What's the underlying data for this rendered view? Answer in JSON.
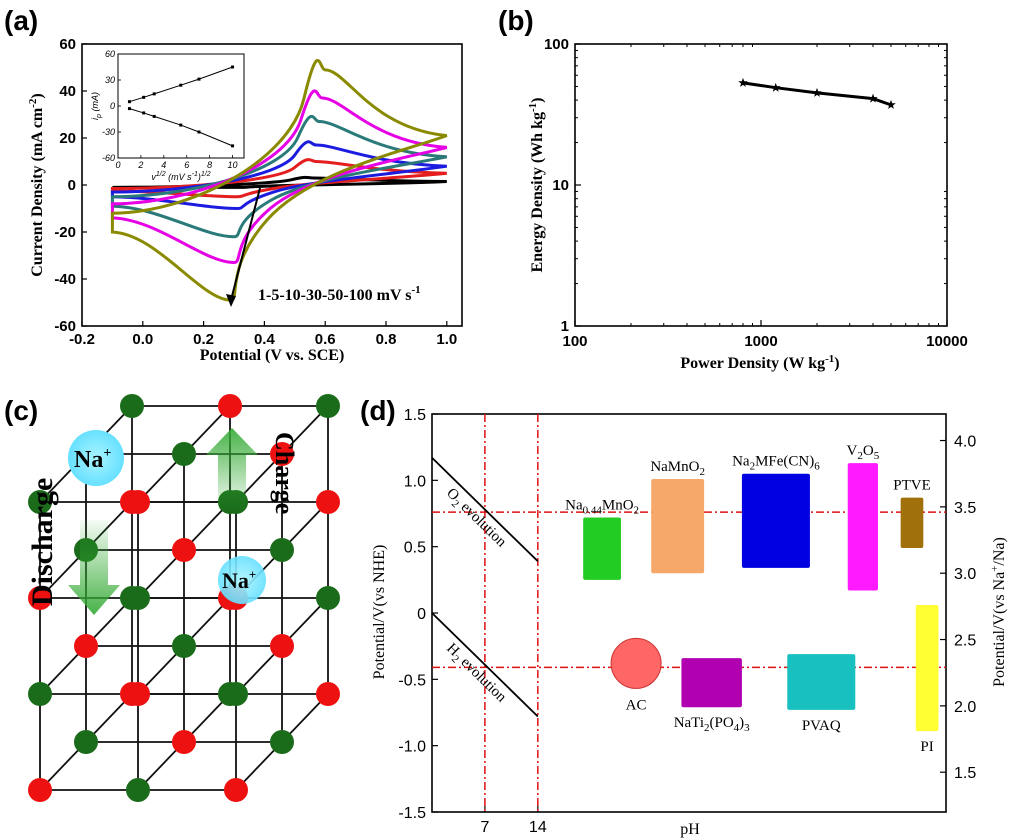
{
  "chart_data": [
    {
      "panel_label": "(a)",
      "type": "line",
      "xlabel": "Potential (V vs. SCE)",
      "ylabel": "Current Density (mA cm",
      "ylabel_sup": "-2",
      "ylabel_close": ")",
      "xlim": [
        -0.2,
        1.05
      ],
      "ylim": [
        -60,
        60
      ],
      "xticks": [
        "-0.2",
        "0.0",
        "0.2",
        "0.4",
        "0.6",
        "0.8",
        "1.0"
      ],
      "yticks": [
        "-60",
        "-40",
        "-20",
        "0",
        "20",
        "40",
        "60"
      ],
      "annotation": "1-5-10-30-50-100 mV s",
      "annotation_sup": "-1",
      "series": [
        {
          "scan_rate": 1,
          "color": "#000000",
          "peak_anodic": [
            0.56,
            3
          ],
          "peak_cathodic": [
            0.32,
            -1
          ],
          "end_upper": 1.5,
          "end_lower": 0.5,
          "start": [
            -0.1,
            -1.0
          ],
          "start_upper": -1.0
        },
        {
          "scan_rate": 5,
          "color": "#e41e1e",
          "peak_anodic": [
            0.57,
            10
          ],
          "peak_cathodic": [
            0.31,
            -5
          ],
          "end_upper": 5,
          "end_lower": 3,
          "start": [
            -0.1,
            -2.5
          ],
          "start_upper": -1.5
        },
        {
          "scan_rate": 10,
          "color": "#1c1ce0",
          "peak_anodic": [
            0.57,
            17
          ],
          "peak_cathodic": [
            0.31,
            -10
          ],
          "end_upper": 8,
          "end_lower": 5,
          "start": [
            -0.1,
            -5
          ],
          "start_upper": -3
        },
        {
          "scan_rate": 30,
          "color": "#2a7a7a",
          "peak_anodic": [
            0.58,
            27
          ],
          "peak_cathodic": [
            0.3,
            -22
          ],
          "end_upper": 12,
          "end_lower": 8,
          "start": [
            -0.1,
            -9
          ],
          "start_upper": -5
        },
        {
          "scan_rate": 50,
          "color": "#e600e6",
          "peak_anodic": [
            0.59,
            37
          ],
          "peak_cathodic": [
            0.3,
            -33
          ],
          "end_upper": 16,
          "end_lower": 11,
          "start": [
            -0.1,
            -14
          ],
          "start_upper": -8
        },
        {
          "scan_rate": 100,
          "color": "#8a8a00",
          "peak_anodic": [
            0.6,
            49
          ],
          "peak_cathodic": [
            0.29,
            -49
          ],
          "end_upper": 21,
          "end_lower": 14,
          "start": [
            -0.1,
            -20
          ],
          "start_upper": -12
        }
      ],
      "inset": {
        "xlabel": "v",
        "xlabel_sup": "1/2",
        "xlabel_rest": " (mV s",
        "xlabel_sup2": "-1",
        "xlabel_close": ")",
        "xlabel_sup3": "1/2",
        "ylabel": "i",
        "ylabel_sub": "p",
        "ylabel_rest": " (mA)",
        "xlim": [
          0,
          11
        ],
        "ylim": [
          -60,
          60
        ],
        "xticks": [
          "0",
          "2",
          "4",
          "6",
          "8",
          "10"
        ],
        "yticks": [
          "-60",
          "-30",
          "0",
          "30",
          "60"
        ],
        "x": [
          1,
          2.24,
          3.16,
          5.48,
          7.07,
          10
        ],
        "anodic": [
          5,
          10,
          14,
          24,
          31,
          45
        ],
        "cathodic": [
          -3,
          -8,
          -12,
          -22,
          -30,
          -46
        ]
      }
    },
    {
      "panel_label": "(b)",
      "type": "line",
      "xlabel": "Power Density (W kg",
      "xlabel_sup": "-1",
      "xlabel_close": ")",
      "ylabel": "Energy Density (Wh kg",
      "ylabel_sup": "-1",
      "ylabel_close": ")",
      "xscale": "log",
      "yscale": "log",
      "xlim": [
        100,
        10000
      ],
      "ylim": [
        1,
        100
      ],
      "xticks": [
        "100",
        "1000",
        "10000"
      ],
      "yticks": [
        "1",
        "10",
        "100"
      ],
      "x": [
        800,
        1200,
        2000,
        4000,
        5000
      ],
      "y": [
        53,
        49,
        45,
        41,
        37
      ],
      "marker": "star"
    },
    {
      "panel_label": "(d)",
      "type": "scatter",
      "xlabel": "pH",
      "ylabel_left": "Potential/V(vs NHE)",
      "ylabel_right": "Potential/V(vs Na",
      "ylabel_right_sup": "+",
      "ylabel_right_close": "/Na)",
      "ylim_left": [
        -1.5,
        1.5
      ],
      "yticks_left": [
        "1.5",
        "1.0",
        "0.5",
        "0",
        "-0.5",
        "-1.0",
        "-1.5"
      ],
      "yticks_right": [
        "4.0",
        "3.5",
        "3.0",
        "2.5",
        "2.0",
        "1.5"
      ],
      "right_offset": 2.7,
      "xticks": [
        "7",
        "14"
      ],
      "xlim": [
        0,
        68
      ],
      "o2_label": "O",
      "o2_sub": "2",
      "o2_rest": " evolution",
      "h2_label": "H",
      "h2_sub": "2",
      "h2_rest": " evolution",
      "o2_line": [
        1.17,
        0.39
      ],
      "h2_line": [
        0.0,
        -0.78
      ],
      "ref_levels": [
        0.76,
        -0.41
      ],
      "materials": [
        {
          "name": "Na",
          "sub": "0.44",
          "rest": "MnO",
          "sub2": "2",
          "color": "#22cc22",
          "x": [
            20,
            25
          ],
          "y": [
            0.25,
            0.72
          ]
        },
        {
          "name": "NaMnO",
          "sub": "2",
          "rest": "",
          "sub2": "",
          "color": "#f5a86a",
          "x": [
            29,
            36
          ],
          "y": [
            0.3,
            1.01
          ]
        },
        {
          "name": "Na",
          "sub": "2",
          "rest": "MFe(CN)",
          "sub2": "6",
          "color": "#0000e0",
          "x": [
            41,
            50
          ],
          "y": [
            0.34,
            1.05
          ]
        },
        {
          "name": "V",
          "sub": "2",
          "rest": "O",
          "sub2": "5",
          "color": "#ff1aff",
          "x": [
            55,
            59
          ],
          "y": [
            0.17,
            1.13
          ]
        },
        {
          "name": "PTVE",
          "sub": "",
          "rest": "",
          "sub2": "",
          "color": "#a0700a",
          "x": [
            62,
            65
          ],
          "y": [
            0.49,
            0.87
          ]
        },
        {
          "name": "NaTi",
          "sub": "2",
          "rest": "(PO",
          "sub2": "4",
          "rest2": ")",
          "sub3": "3",
          "color": "#b000b0",
          "x": [
            33,
            41
          ],
          "y": [
            -0.71,
            -0.34
          ]
        },
        {
          "name": "PVAQ",
          "sub": "",
          "rest": "",
          "sub2": "",
          "color": "#18c0c0",
          "x": [
            47,
            56
          ],
          "y": [
            -0.73,
            -0.31
          ]
        },
        {
          "name": "PI",
          "sub": "",
          "rest": "",
          "sub2": "",
          "color": "#ffff33",
          "x": [
            64,
            67
          ],
          "y": [
            -0.89,
            0.06
          ]
        }
      ],
      "circle": {
        "name": "AC",
        "color": "#ff6666",
        "x": 27,
        "y": -0.38
      }
    }
  ],
  "panel_c": {
    "label": "(c)",
    "na_top": "Na",
    "na_top_sup": "+",
    "na_mid": "Na",
    "na_mid_sup": "+",
    "discharge": "Discharge",
    "charge": "Charge"
  }
}
